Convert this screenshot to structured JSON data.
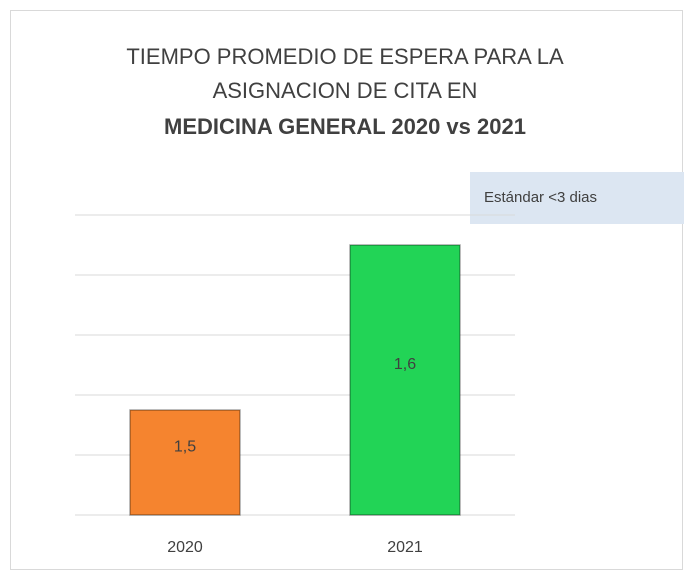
{
  "chart_data": {
    "type": "bar",
    "title_lines": [
      "TIEMPO PROMEDIO DE ESPERA PARA LA",
      "ASIGNACION DE CITA EN",
      "MEDICINA GENERAL 2020 vs 2021"
    ],
    "annotation": "Estándar <3 dias",
    "categories": [
      "2020",
      "2021"
    ],
    "values": [
      1.53,
      1.64
    ],
    "value_labels": [
      "1,5",
      "1,6"
    ],
    "colors": [
      "#f5842f",
      "#22d456"
    ],
    "ylim": [
      1.46,
      1.66
    ],
    "yticks": [
      1.46,
      1.5,
      1.54,
      1.58,
      1.62,
      1.66
    ],
    "grid": true
  }
}
